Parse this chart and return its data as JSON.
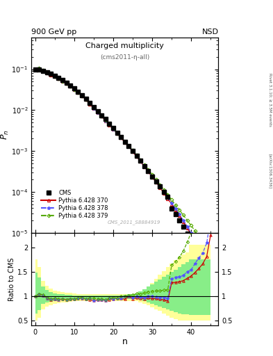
{
  "title_main": "900 GeV pp",
  "title_right": "NSD",
  "plot_title": "Charged multiplicity",
  "plot_subtitle": "(cms2011-η-all)",
  "watermark": "CMS_2011_S8884919",
  "right_label": "Rivet 3.1.10; ≥ 3.5M events",
  "right_label2": "[arXiv:1306.3436]",
  "xlabel": "n",
  "ylabel_main": "P_n",
  "ylabel_ratio": "Ratio to CMS",
  "xlim": [
    -1,
    47
  ],
  "ylim_main": [
    1e-05,
    0.6
  ],
  "ylim_ratio": [
    0.4,
    2.3
  ],
  "cms_n": [
    0,
    1,
    2,
    3,
    4,
    5,
    6,
    7,
    8,
    9,
    10,
    11,
    12,
    13,
    14,
    15,
    16,
    17,
    18,
    19,
    20,
    21,
    22,
    23,
    24,
    25,
    26,
    27,
    28,
    29,
    30,
    31,
    32,
    33,
    34,
    35,
    36,
    37,
    38,
    39,
    40,
    41,
    42,
    43,
    44,
    45
  ],
  "cms_pn": [
    0.1,
    0.1,
    0.09,
    0.085,
    0.078,
    0.07,
    0.062,
    0.054,
    0.047,
    0.04,
    0.034,
    0.028,
    0.023,
    0.019,
    0.015,
    0.012,
    0.0095,
    0.0075,
    0.006,
    0.0046,
    0.0036,
    0.0028,
    0.0022,
    0.0017,
    0.0013,
    0.001,
    0.00075,
    0.00057,
    0.00043,
    0.00032,
    0.00024,
    0.00018,
    0.000135,
    0.0001,
    7.5e-05,
    3.9e-05,
    2.8e-05,
    2e-05,
    1.4e-05,
    9.5e-06,
    6.5e-06,
    4.3e-06,
    2.8e-06,
    1.8e-06,
    1.1e-06,
    6e-07
  ],
  "p370_n": [
    0,
    1,
    2,
    3,
    4,
    5,
    6,
    7,
    8,
    9,
    10,
    11,
    12,
    13,
    14,
    15,
    16,
    17,
    18,
    19,
    20,
    21,
    22,
    23,
    24,
    25,
    26,
    27,
    28,
    29,
    30,
    31,
    32,
    33,
    34,
    35,
    36,
    37,
    38,
    39,
    40,
    41,
    42,
    43,
    44,
    45
  ],
  "p370_pn": [
    0.1,
    0.105,
    0.092,
    0.082,
    0.073,
    0.066,
    0.058,
    0.051,
    0.044,
    0.038,
    0.032,
    0.027,
    0.022,
    0.018,
    0.014,
    0.011,
    0.0088,
    0.007,
    0.0055,
    0.0043,
    0.0034,
    0.0027,
    0.0021,
    0.0016,
    0.0013,
    0.00095,
    0.00073,
    0.00055,
    0.00041,
    0.00031,
    0.00023,
    0.000172,
    0.000127,
    9.3e-05,
    6.8e-05,
    5e-05,
    3.6e-05,
    2.6e-05,
    1.85e-05,
    1.3e-05,
    9.2e-06,
    6.4e-06,
    4.4e-06,
    3e-06,
    2e-06,
    1.35e-06
  ],
  "p378_n": [
    0,
    1,
    2,
    3,
    4,
    5,
    6,
    7,
    8,
    9,
    10,
    11,
    12,
    13,
    14,
    15,
    16,
    17,
    18,
    19,
    20,
    21,
    22,
    23,
    24,
    25,
    26,
    27,
    28,
    29,
    30,
    31,
    32,
    33,
    34,
    35,
    36,
    37,
    38,
    39,
    40,
    41,
    42,
    43,
    44,
    45
  ],
  "p378_pn": [
    0.1,
    0.105,
    0.092,
    0.082,
    0.074,
    0.066,
    0.058,
    0.051,
    0.044,
    0.038,
    0.032,
    0.027,
    0.022,
    0.018,
    0.0145,
    0.011,
    0.0088,
    0.007,
    0.0055,
    0.0044,
    0.0034,
    0.0027,
    0.0021,
    0.0017,
    0.0013,
    0.00098,
    0.00075,
    0.00056,
    0.00042,
    0.00032,
    0.00024,
    0.000178,
    0.000132,
    9.8e-05,
    7.2e-05,
    5.3e-05,
    3.9e-05,
    2.8e-05,
    2e-05,
    1.43e-05,
    1e-05,
    7.2e-06,
    5e-06,
    3.4e-06,
    2.3e-06,
    1.55e-06
  ],
  "p379_n": [
    0,
    1,
    2,
    3,
    4,
    5,
    6,
    7,
    8,
    9,
    10,
    11,
    12,
    13,
    14,
    15,
    16,
    17,
    18,
    19,
    20,
    21,
    22,
    23,
    24,
    25,
    26,
    27,
    28,
    29,
    30,
    31,
    32,
    33,
    34,
    35,
    36,
    37,
    38,
    39,
    40,
    41,
    42,
    43,
    44,
    45
  ],
  "p379_pn": [
    0.1,
    0.105,
    0.093,
    0.083,
    0.074,
    0.067,
    0.059,
    0.051,
    0.044,
    0.038,
    0.032,
    0.027,
    0.0225,
    0.018,
    0.0145,
    0.0115,
    0.009,
    0.0071,
    0.0056,
    0.0044,
    0.0035,
    0.0027,
    0.0022,
    0.0017,
    0.00133,
    0.00103,
    0.00079,
    0.0006,
    0.00046,
    0.00035,
    0.000265,
    0.0002,
    0.00015,
    0.000113,
    8.5e-05,
    6.4e-05,
    4.8e-05,
    3.6e-05,
    2.7e-05,
    2e-05,
    1.5e-05,
    1.1e-05,
    8e-06,
    5.8e-06,
    4.1e-06,
    2.9e-06
  ],
  "yellow_band_n": [
    0,
    1,
    2,
    3,
    4,
    5,
    6,
    7,
    8,
    9,
    10,
    11,
    12,
    13,
    14,
    15,
    16,
    17,
    18,
    19,
    20,
    21,
    22,
    23,
    24,
    25,
    26,
    27,
    28,
    29,
    30,
    31,
    32,
    33,
    34,
    35,
    36,
    37,
    38,
    39,
    40,
    41,
    42,
    43,
    44,
    45
  ],
  "yellow_band_lo": [
    0.5,
    0.57,
    0.74,
    0.79,
    0.82,
    0.84,
    0.86,
    0.87,
    0.88,
    0.89,
    0.9,
    0.9,
    0.9,
    0.9,
    0.9,
    0.9,
    0.9,
    0.9,
    0.9,
    0.9,
    0.9,
    0.9,
    0.9,
    0.9,
    0.9,
    0.9,
    0.9,
    0.88,
    0.85,
    0.82,
    0.78,
    0.74,
    0.7,
    0.65,
    0.61,
    0.57,
    0.54,
    0.51,
    0.5,
    0.5,
    0.5,
    0.5,
    0.5,
    0.5,
    0.5,
    0.5
  ],
  "yellow_band_hi": [
    1.75,
    1.6,
    1.32,
    1.22,
    1.16,
    1.12,
    1.1,
    1.09,
    1.08,
    1.07,
    1.06,
    1.05,
    1.05,
    1.05,
    1.05,
    1.05,
    1.05,
    1.05,
    1.05,
    1.05,
    1.05,
    1.05,
    1.05,
    1.05,
    1.05,
    1.05,
    1.05,
    1.1,
    1.15,
    1.2,
    1.28,
    1.36,
    1.44,
    1.52,
    1.6,
    1.67,
    1.74,
    1.8,
    1.85,
    1.9,
    2.05,
    2.05,
    2.05,
    2.05,
    2.05,
    2.05
  ],
  "green_band_lo": [
    0.65,
    0.72,
    0.84,
    0.87,
    0.89,
    0.91,
    0.92,
    0.93,
    0.93,
    0.94,
    0.94,
    0.95,
    0.95,
    0.95,
    0.95,
    0.95,
    0.95,
    0.95,
    0.95,
    0.95,
    0.95,
    0.95,
    0.95,
    0.95,
    0.95,
    0.95,
    0.95,
    0.93,
    0.91,
    0.88,
    0.85,
    0.82,
    0.79,
    0.76,
    0.73,
    0.7,
    0.68,
    0.65,
    0.64,
    0.63,
    0.62,
    0.62,
    0.62,
    0.62,
    0.62,
    0.62
  ],
  "green_band_hi": [
    1.48,
    1.38,
    1.2,
    1.13,
    1.09,
    1.06,
    1.05,
    1.04,
    1.03,
    1.03,
    1.02,
    1.02,
    1.02,
    1.02,
    1.02,
    1.02,
    1.02,
    1.02,
    1.02,
    1.02,
    1.02,
    1.02,
    1.02,
    1.03,
    1.04,
    1.05,
    1.06,
    1.1,
    1.15,
    1.2,
    1.25,
    1.3,
    1.35,
    1.4,
    1.45,
    1.5,
    1.55,
    1.6,
    1.65,
    1.7,
    1.76,
    1.76,
    1.76,
    1.76,
    1.76,
    1.76
  ],
  "color_cms": "black",
  "color_370": "#cc0000",
  "color_378": "#5555ff",
  "color_379": "#55aa00",
  "color_yellow": "#ffff99",
  "color_green": "#88ee88",
  "ms_cms": 4.0,
  "ms_pythia": 3.0
}
